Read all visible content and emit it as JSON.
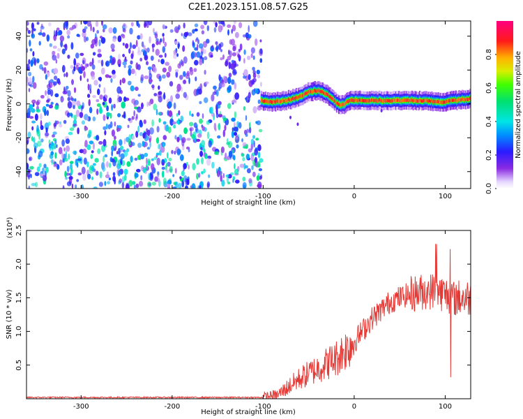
{
  "title": "C2E1.2023.151.08.57.G25",
  "colors": {
    "line": "#e53935",
    "axis": "#000000"
  },
  "chart_data": [
    {
      "type": "heatmap",
      "xlabel": "Height of straight line (km)",
      "ylabel": "Frequency (Hz)",
      "xlim": [
        -360,
        128
      ],
      "ylim": [
        -50,
        49
      ],
      "xticks": [
        -300,
        -200,
        -100,
        0,
        100
      ],
      "yticks": [
        -40,
        -20,
        0,
        20,
        40
      ],
      "colorbar": {
        "label": "Normalized spectral amplitude",
        "range": [
          0,
          1
        ],
        "ticks": [
          "0.0",
          "0.2",
          "0.4",
          "0.6",
          "0.8"
        ],
        "tick_values": [
          0,
          0.2,
          0.4,
          0.6,
          0.8
        ],
        "colormap": "rainbow (white → violet → blue → cyan → green → yellow → red → magenta)"
      },
      "regions": [
        {
          "name": "broadband noise",
          "x_range": [
            -360,
            -102
          ],
          "y_range": [
            -50,
            49
          ],
          "amplitude": "0.2–0.4, denser for y < 0"
        },
        {
          "name": "frequency trace",
          "x_range": [
            -102,
            128
          ],
          "amplitude": "up to ~0.9"
        }
      ],
      "trace": {
        "x": [
          -102,
          -90,
          -75,
          -60,
          -50,
          -40,
          -30,
          -20,
          -15,
          -10,
          -5,
          0,
          20,
          50,
          80,
          95,
          110,
          128
        ],
        "y": [
          2,
          1,
          2,
          4,
          7,
          8,
          6,
          1,
          -1,
          0,
          2,
          2,
          2,
          2,
          2,
          1,
          2,
          3
        ]
      }
    },
    {
      "type": "line",
      "xlabel": "Height of straight line (km)",
      "ylabel": "SNR (10 * v/v)",
      "y_multiplier": "(x10⁴)",
      "xlim": [
        -360,
        128
      ],
      "ylim": [
        0,
        2.5
      ],
      "xticks": [
        -300,
        -200,
        -100,
        0,
        100
      ],
      "yticks": [
        0.5,
        1.0,
        1.5,
        2.0,
        2.5
      ],
      "series": [
        {
          "envelope_x": [
            -360,
            -100,
            -85,
            -75,
            -60,
            -40,
            -20,
            0,
            20,
            40,
            60,
            80,
            90,
            100,
            110,
            120,
            128
          ],
          "envelope_y": [
            0.02,
            0.02,
            0.05,
            0.15,
            0.3,
            0.45,
            0.6,
            0.85,
            1.2,
            1.45,
            1.55,
            1.6,
            1.6,
            1.55,
            1.5,
            1.5,
            1.5
          ]
        }
      ]
    }
  ]
}
